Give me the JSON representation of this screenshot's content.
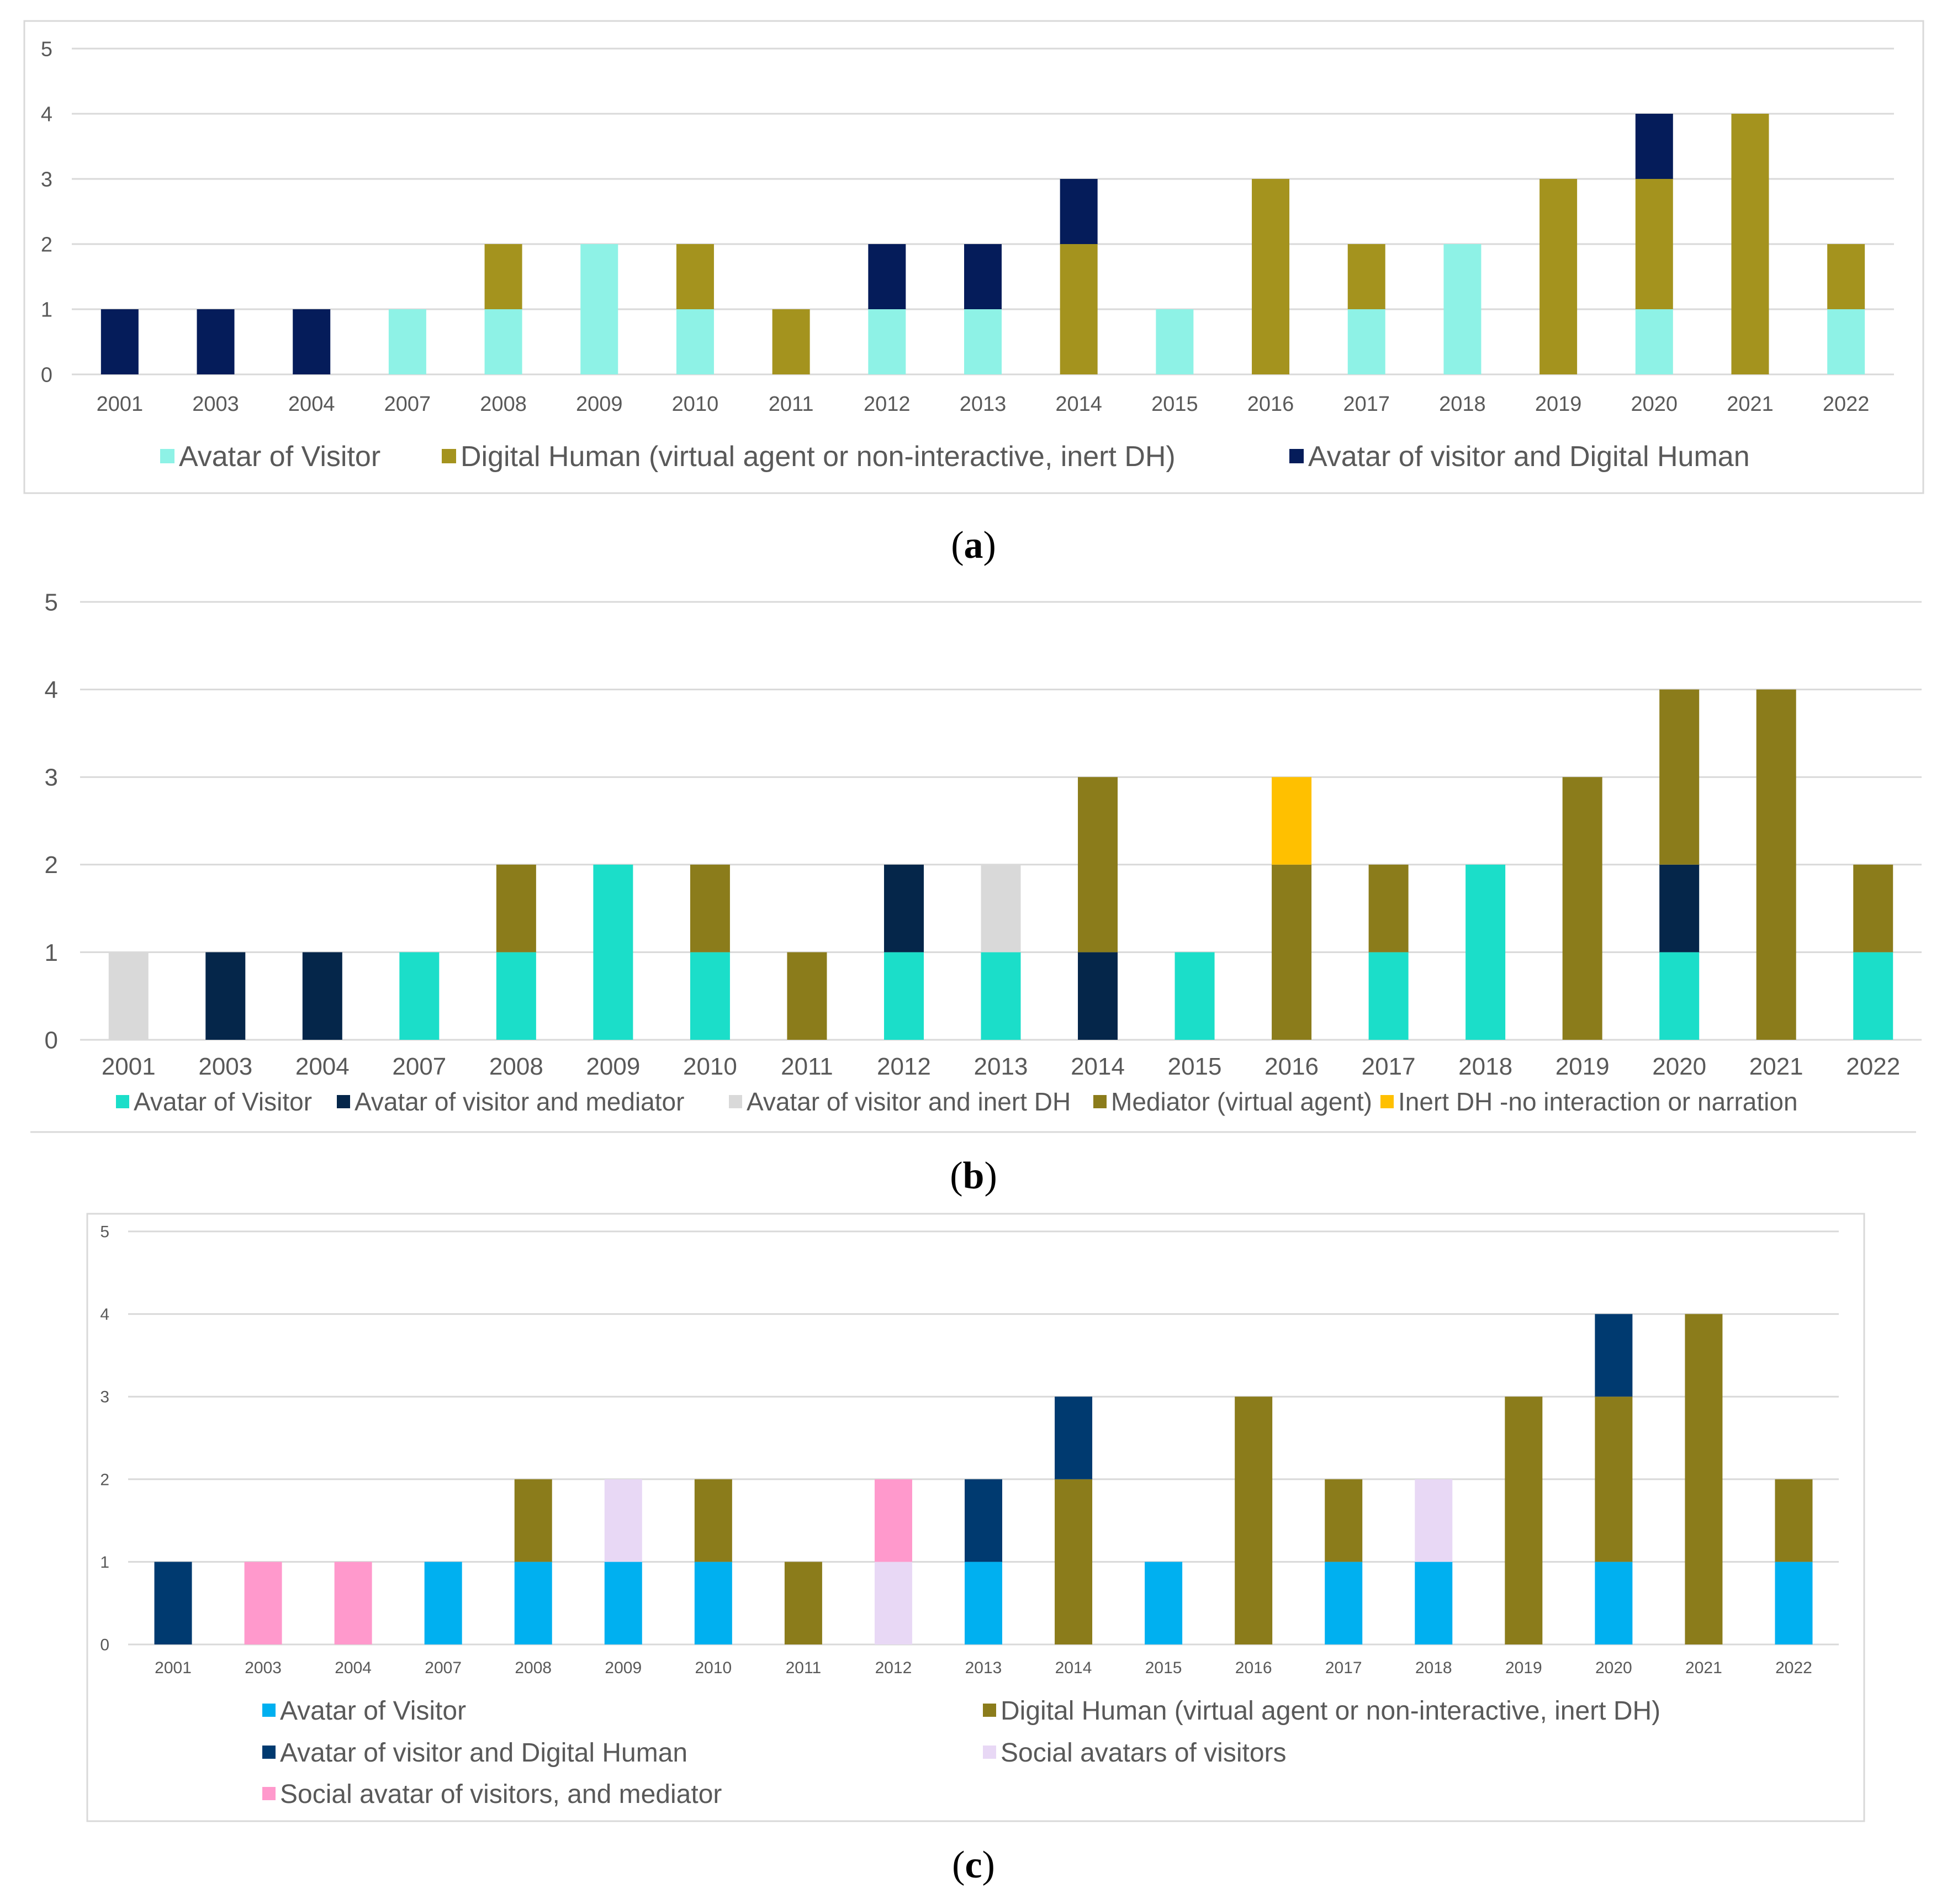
{
  "chart_data": [
    {
      "type": "bar",
      "stacked": true,
      "title": "",
      "caption_letter": "a",
      "xlabel": "",
      "ylabel": "",
      "ylim": [
        0,
        5
      ],
      "yticks": [
        "0",
        "1",
        "2",
        "3",
        "4",
        "5"
      ],
      "grid": true,
      "legend_position": "bottom",
      "categories": [
        "2001",
        "2003",
        "2004",
        "2007",
        "2008",
        "2009",
        "2010",
        "2011",
        "2012",
        "2013",
        "2014",
        "2015",
        "2016",
        "2017",
        "2018",
        "2019",
        "2020",
        "2021",
        "2022"
      ],
      "series": [
        {
          "name": "Avatar of Visitor",
          "color": "#8ef2e6",
          "values": [
            0,
            0,
            0,
            1,
            1,
            2,
            1,
            0,
            1,
            1,
            0,
            1,
            0,
            1,
            2,
            0,
            1,
            0,
            1
          ]
        },
        {
          "name": "Digital Human (virtual agent or non-interactive, inert DH)",
          "color": "#a4931e",
          "values": [
            0,
            0,
            0,
            0,
            1,
            0,
            1,
            1,
            0,
            0,
            2,
            0,
            3,
            1,
            0,
            3,
            2,
            4,
            1
          ]
        },
        {
          "name": "Avatar of visitor and Digital Human",
          "color": "#051c5a",
          "values": [
            1,
            1,
            1,
            0,
            0,
            0,
            0,
            0,
            1,
            1,
            1,
            0,
            0,
            0,
            0,
            0,
            1,
            0,
            0
          ]
        }
      ]
    },
    {
      "type": "bar",
      "stacked": true,
      "title": "",
      "caption_letter": "b",
      "xlabel": "",
      "ylabel": "",
      "ylim": [
        0,
        5
      ],
      "yticks": [
        "0",
        "1",
        "2",
        "3",
        "4",
        "5"
      ],
      "grid": true,
      "legend_position": "bottom",
      "categories": [
        "2001",
        "2003",
        "2004",
        "2007",
        "2008",
        "2009",
        "2010",
        "2011",
        "2012",
        "2013",
        "2014",
        "2015",
        "2016",
        "2017",
        "2018",
        "2019",
        "2020",
        "2021",
        "2022"
      ],
      "series": [
        {
          "name": "Avatar of Visitor",
          "color": "#1bdec9",
          "values": [
            0,
            0,
            0,
            1,
            1,
            2,
            1,
            0,
            1,
            1,
            0,
            1,
            0,
            1,
            2,
            0,
            1,
            0,
            1
          ]
        },
        {
          "name": "Avatar of visitor and mediator",
          "color": "#05264a",
          "values": [
            0,
            1,
            1,
            0,
            0,
            0,
            0,
            0,
            1,
            0,
            1,
            0,
            0,
            0,
            0,
            0,
            1,
            0,
            0
          ]
        },
        {
          "name": "Avatar of visitor and inert DH",
          "color": "#d9d9d9",
          "values": [
            1,
            0,
            0,
            0,
            0,
            0,
            0,
            0,
            0,
            1,
            0,
            0,
            0,
            0,
            0,
            0,
            0,
            0,
            0
          ]
        },
        {
          "name": "Mediator (virtual agent)",
          "color": "#8b7c1b",
          "values": [
            0,
            0,
            0,
            0,
            1,
            0,
            1,
            1,
            0,
            0,
            2,
            0,
            2,
            1,
            0,
            3,
            2,
            4,
            1
          ]
        },
        {
          "name": "Inert DH -no interaction or narration",
          "color": "#ffc000",
          "values": [
            0,
            0,
            0,
            0,
            0,
            0,
            0,
            0,
            0,
            0,
            0,
            0,
            1,
            0,
            0,
            0,
            0,
            0,
            0
          ]
        }
      ]
    },
    {
      "type": "bar",
      "stacked": true,
      "title": "",
      "caption_letter": "c",
      "xlabel": "",
      "ylabel": "",
      "ylim": [
        0,
        5
      ],
      "yticks": [
        "0",
        "1",
        "2",
        "3",
        "4",
        "5"
      ],
      "grid": true,
      "legend_position": "bottom",
      "categories": [
        "2001",
        "2003",
        "2004",
        "2007",
        "2008",
        "2009",
        "2010",
        "2011",
        "2012",
        "2013",
        "2014",
        "2015",
        "2016",
        "2017",
        "2018",
        "2019",
        "2020",
        "2021",
        "2022"
      ],
      "series": [
        {
          "name": "Avatar of Visitor",
          "color": "#00b0f0",
          "values": [
            0,
            0,
            0,
            1,
            1,
            1,
            1,
            0,
            0,
            1,
            0,
            1,
            0,
            1,
            1,
            0,
            1,
            0,
            1
          ]
        },
        {
          "name": "Digital Human (virtual agent or non-interactive, inert DH)",
          "color": "#8b7c1b",
          "values": [
            0,
            0,
            0,
            0,
            1,
            0,
            1,
            1,
            0,
            0,
            2,
            0,
            3,
            1,
            0,
            3,
            2,
            4,
            1
          ]
        },
        {
          "name": "Avatar of visitor and Digital Human",
          "color": "#003a70",
          "values": [
            1,
            0,
            0,
            0,
            0,
            0,
            0,
            0,
            0,
            1,
            1,
            0,
            0,
            0,
            0,
            0,
            1,
            0,
            0
          ]
        },
        {
          "name": "Social avatars of visitors",
          "color": "#e8d8f5",
          "values": [
            0,
            0,
            0,
            0,
            0,
            1,
            0,
            0,
            1,
            0,
            0,
            0,
            0,
            0,
            1,
            0,
            0,
            0,
            0
          ]
        },
        {
          "name": "Social avatar of visitors, and mediator",
          "color": "#ff99cc",
          "values": [
            0,
            1,
            1,
            0,
            0,
            0,
            0,
            0,
            1,
            0,
            0,
            0,
            0,
            0,
            0,
            0,
            0,
            0,
            0
          ]
        }
      ]
    }
  ]
}
